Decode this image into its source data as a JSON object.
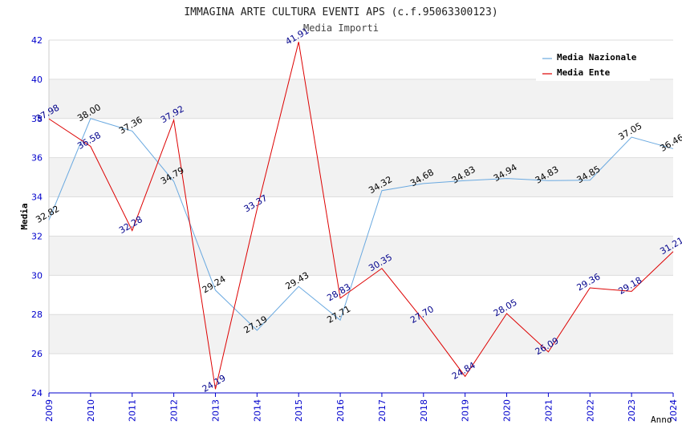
{
  "chart_data": {
    "type": "line",
    "title": "IMMAGINA ARTE CULTURA EVENTI APS (c.f.95063300123)",
    "subtitle": "Media Importi",
    "xlabel": "Anno",
    "ylabel": "Media",
    "ylim": [
      24,
      42
    ],
    "yticks": [
      24,
      26,
      28,
      30,
      32,
      34,
      36,
      38,
      40,
      42
    ],
    "categories": [
      "2009",
      "2010",
      "2011",
      "2012",
      "2013",
      "2014",
      "2015",
      "2016",
      "2017",
      "2018",
      "2019",
      "2020",
      "2021",
      "2022",
      "2023",
      "2024"
    ],
    "series": [
      {
        "name": "Media Nazionale",
        "color": "#6aa9e0",
        "values": [
          32.82,
          38.0,
          37.36,
          34.79,
          29.24,
          27.19,
          29.43,
          27.71,
          34.32,
          34.68,
          34.83,
          34.94,
          34.83,
          34.85,
          37.05,
          36.46
        ],
        "labels": [
          "32.82",
          "38.00",
          "37.36",
          "34.79",
          "29.24",
          "27.19",
          "29.43",
          "27.71",
          "34.32",
          "34.68",
          "34.83",
          "34.94",
          "34.83",
          "34.85",
          "37.05",
          "36.46"
        ]
      },
      {
        "name": "Media Ente",
        "color": "#dd0000",
        "values": [
          37.98,
          36.58,
          32.28,
          37.92,
          24.19,
          33.37,
          41.91,
          28.83,
          30.35,
          27.7,
          24.84,
          28.05,
          26.09,
          29.36,
          29.18,
          31.21
        ],
        "labels": [
          "37.98",
          "36.58",
          "32.28",
          "37.92",
          "24.19",
          "33.37",
          "41.91",
          "28.83",
          "30.35",
          "27.70",
          "24.84",
          "28.05",
          "26.09",
          "29.36",
          "29.18",
          "31.21"
        ]
      }
    ],
    "legend_position": "top-right",
    "band_color": "#f2f2f2",
    "grid_color": "#dddddd",
    "axis_color": "#0000cc"
  }
}
